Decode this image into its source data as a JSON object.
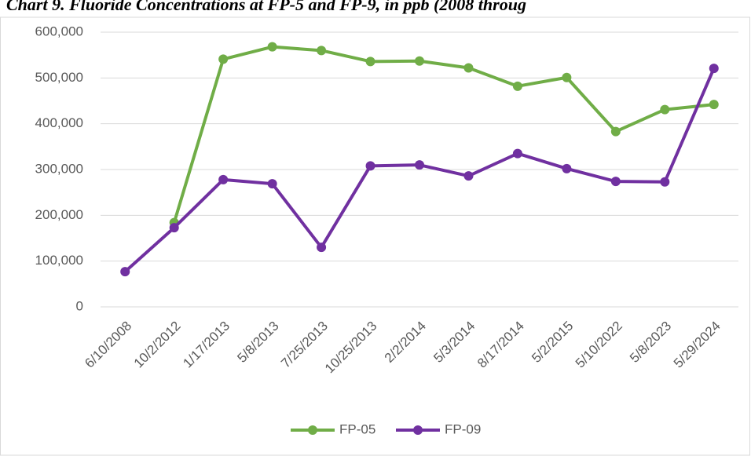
{
  "chart_data": {
    "type": "line",
    "title": "Chart 9. Fluoride Concentrations at FP-5 and FP-9, in ppb (2008 throug",
    "categories": [
      "6/10/2008",
      "10/2/2012",
      "1/17/2013",
      "5/8/2013",
      "7/25/2013",
      "10/25/2013",
      "2/2/2014",
      "5/3/2014",
      "8/17/2014",
      "5/2/2015",
      "5/10/2022",
      "5/8/2023",
      "5/29/2024"
    ],
    "series": [
      {
        "name": "FP-05",
        "color": "#70ad47",
        "values": [
          null,
          184000,
          541000,
          568000,
          560000,
          536000,
          537000,
          522000,
          482000,
          501000,
          383000,
          431000,
          442000
        ]
      },
      {
        "name": "FP-09",
        "color": "#7030a0",
        "values": [
          77000,
          173000,
          278000,
          269000,
          130000,
          308000,
          310000,
          286000,
          335000,
          302000,
          274000,
          273000,
          521000
        ]
      }
    ],
    "ylim": [
      0,
      600000
    ],
    "yticks": [
      0,
      {
        "value": 100000,
        "label": "100,000"
      },
      {
        "value": 200000,
        "label": "200,000"
      },
      {
        "value": 300000,
        "label": "300,000"
      },
      {
        "value": 400000,
        "label": "400,000"
      },
      {
        "value": 500000,
        "label": "500,000"
      },
      {
        "value": 600000,
        "label": "600,000"
      }
    ],
    "grid": true,
    "legend": "bottom"
  }
}
